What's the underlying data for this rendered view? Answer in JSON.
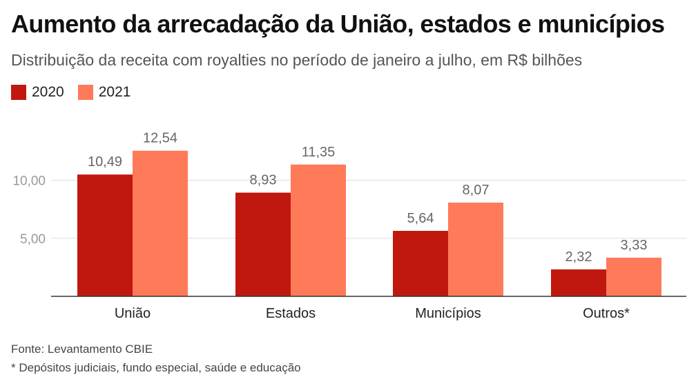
{
  "chart_data": {
    "type": "bar",
    "title": "Aumento da arrecadação da União, estados e municípios",
    "subtitle": "Distribuição da receita com royalties no período de janeiro a julho, em R$ bilhões",
    "categories": [
      "União",
      "Estados",
      "Municípios",
      "Outros*"
    ],
    "series": [
      {
        "name": "2020",
        "values": [
          10.49,
          8.93,
          5.64,
          2.32
        ],
        "labels": [
          "10,49",
          "8,93",
          "5,64",
          "2,32"
        ],
        "color": "#c0180e"
      },
      {
        "name": "2021",
        "values": [
          12.54,
          11.35,
          8.07,
          3.33
        ],
        "labels": [
          "12,54",
          "11,35",
          "8,07",
          "3,33"
        ],
        "color": "#ff7a59"
      }
    ],
    "yticks": [
      5,
      10
    ],
    "ytick_labels": [
      "5,00",
      "10,00"
    ],
    "ylim": [
      0,
      15
    ],
    "grid": true,
    "legend_position": "top-left",
    "source": "Fonte: Levantamento CBIE",
    "note": "* Depósitos judiciais, fundo especial, saúde e educação"
  }
}
